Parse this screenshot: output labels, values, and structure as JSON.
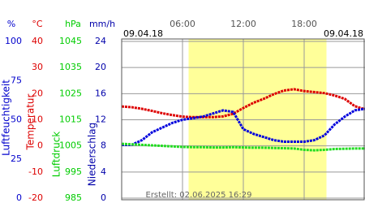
{
  "chart_data": {
    "type": "line",
    "date_left": "09.04.18",
    "date_right": "09.04.18",
    "created": "Erstellt: 02.06.2025 16:29",
    "xlim": [
      0,
      24
    ],
    "xticks": [
      {
        "value": 6,
        "label": "06:00"
      },
      {
        "value": 12,
        "label": "12:00"
      },
      {
        "value": 18,
        "label": "18:00"
      }
    ],
    "daylight": [
      6.6,
      20.2
    ],
    "daylight_color": "#ffff99",
    "grid": true,
    "ylim": [
      0,
      24
    ],
    "yticks": [
      0,
      4,
      8,
      12,
      16,
      20,
      24
    ],
    "y_axes": [
      {
        "unit": "%",
        "title": "Luftfeuchtigkeit",
        "color": "#0000cc",
        "lim": [
          0,
          100
        ],
        "ticks": [
          0,
          25,
          50,
          75,
          100
        ]
      },
      {
        "unit": "°C",
        "title": "Temperatur",
        "color": "#dd0000",
        "lim": [
          -20,
          40
        ],
        "ticks": [
          -20,
          -10,
          0,
          10,
          20,
          30,
          40
        ]
      },
      {
        "unit": "hPa",
        "title": "Luftdruck",
        "color": "#00cc00",
        "lim": [
          985,
          1045
        ],
        "ticks": [
          985,
          995,
          1005,
          1015,
          1025,
          1035,
          1045
        ]
      },
      {
        "unit": "mm/h",
        "title": "Niederschlag",
        "color": "#0000aa",
        "lim": [
          0,
          24
        ],
        "ticks": [
          0,
          4,
          8,
          12,
          16,
          20,
          24
        ]
      }
    ],
    "x": [
      0,
      1,
      2,
      3,
      4,
      5,
      6,
      7,
      8,
      9,
      10,
      11,
      12,
      13,
      14,
      15,
      16,
      17,
      18,
      19,
      20,
      21,
      22,
      23,
      24
    ],
    "series": [
      {
        "name": "Temperatur",
        "axis": 1,
        "color": "#dd0000",
        "values": [
          15.1,
          14.8,
          14.2,
          13.4,
          12.5,
          11.8,
          11.2,
          11.0,
          11.0,
          11.0,
          11.3,
          12.3,
          14.5,
          16.5,
          18.0,
          19.8,
          21.2,
          21.7,
          21.0,
          20.6,
          20.2,
          19.3,
          18.0,
          15.2,
          14.0
        ]
      },
      {
        "name": "Luftfeuchtigkeit",
        "axis": 0,
        "color": "#0000dd",
        "values": [
          34,
          34,
          37,
          42,
          45,
          48,
          50,
          51,
          52,
          54,
          56,
          55,
          44,
          41,
          39,
          37,
          36,
          36,
          36,
          37,
          40,
          47,
          52,
          56,
          57
        ]
      },
      {
        "name": "Luftdruck",
        "axis": 2,
        "color": "#22dd22",
        "values": [
          1005.8,
          1005.6,
          1005.4,
          1005.2,
          1005.0,
          1004.8,
          1004.6,
          1004.5,
          1004.5,
          1004.4,
          1004.4,
          1004.5,
          1004.4,
          1004.3,
          1004.3,
          1004.2,
          1004.1,
          1004.0,
          1003.5,
          1003.3,
          1003.5,
          1003.8,
          1003.9,
          1004.0,
          1004.0
        ]
      }
    ]
  }
}
